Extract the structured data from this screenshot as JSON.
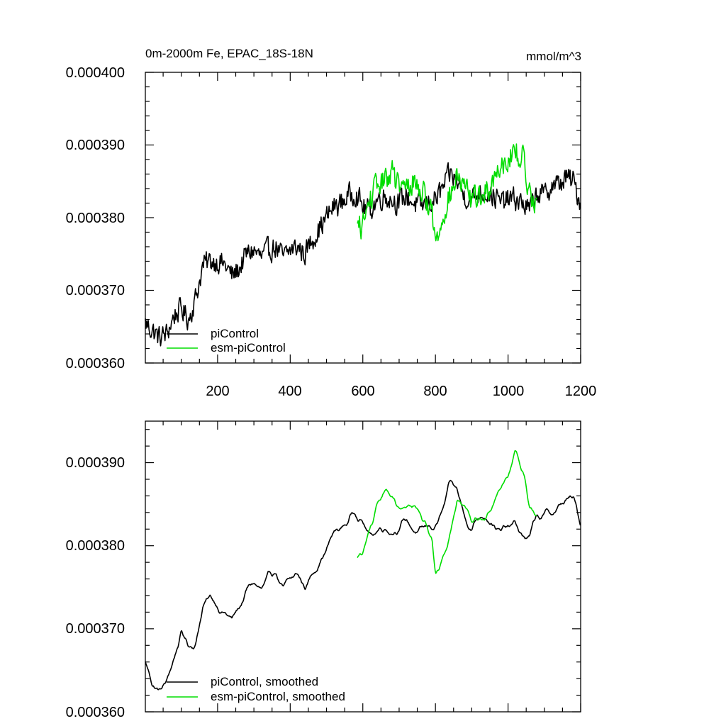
{
  "chart_data": [
    {
      "type": "line",
      "title": "0m-2000m Fe, EPAC_18S-18N",
      "units": "mmol/m^3",
      "xlabel": "",
      "ylabel": "",
      "xlim": [
        1,
        1200
      ],
      "ylim": [
        0.00036,
        0.0004
      ],
      "xticks": [
        200,
        400,
        600,
        800,
        1000,
        1200
      ],
      "xtick_labels": [
        "200",
        "400",
        "600",
        "800",
        "1000",
        "1200"
      ],
      "yticks": [
        0.00036,
        0.00037,
        0.00038,
        0.00039,
        0.0004
      ],
      "ytick_labels": [
        "0.000360",
        "0.000370",
        "0.000380",
        "0.000390",
        "0.000400"
      ],
      "legend_position": "bottom-left",
      "series": [
        {
          "name": "piControl",
          "color": "#000000",
          "x_range": [
            1,
            1200
          ],
          "x_anchor": [
            1,
            20,
            40,
            60,
            80,
            100,
            120,
            140,
            160,
            180,
            200,
            220,
            240,
            260,
            280,
            300,
            320,
            340,
            360,
            380,
            400,
            420,
            440,
            460,
            480,
            500,
            520,
            540,
            560,
            580,
            600,
            620,
            640,
            660,
            680,
            700,
            720,
            740,
            760,
            780,
            800,
            820,
            840,
            860,
            880,
            900,
            920,
            940,
            960,
            980,
            1000,
            1020,
            1040,
            1060,
            1080,
            1100,
            1120,
            1140,
            1160,
            1180,
            1200
          ],
          "trend": [
            0.0003655,
            0.0003645,
            0.0003635,
            0.000364,
            0.0003665,
            0.0003675,
            0.000366,
            0.000369,
            0.0003735,
            0.000374,
            0.000374,
            0.0003735,
            0.000372,
            0.000373,
            0.000375,
            0.0003755,
            0.0003745,
            0.0003755,
            0.000376,
            0.0003745,
            0.0003755,
            0.000376,
            0.000375,
            0.000377,
            0.0003785,
            0.00038,
            0.0003815,
            0.000382,
            0.000383,
            0.0003835,
            0.0003815,
            0.000381,
            0.0003825,
            0.000383,
            0.0003825,
            0.000382,
            0.000383,
            0.000382,
            0.0003815,
            0.000382,
            0.0003825,
            0.000384,
            0.000386,
            0.000385,
            0.000383,
            0.0003825,
            0.0003835,
            0.0003835,
            0.000383,
            0.000382,
            0.0003825,
            0.0003825,
            0.000382,
            0.000381,
            0.0003835,
            0.000383,
            0.0003845,
            0.0003845,
            0.0003855,
            0.000385,
            0.000382
          ],
          "noise_amplitude": 2.2e-06
        },
        {
          "name": "esm-piControl",
          "color": "#00dd00",
          "x_range": [
            585,
            1080
          ],
          "x_anchor": [
            585,
            600,
            620,
            640,
            660,
            680,
            700,
            720,
            740,
            760,
            780,
            790,
            800,
            810,
            820,
            840,
            860,
            880,
            900,
            920,
            940,
            960,
            980,
            1000,
            1020,
            1040,
            1060,
            1080
          ],
          "trend": [
            0.0003785,
            0.000379,
            0.0003825,
            0.0003845,
            0.000385,
            0.0003865,
            0.000384,
            0.000384,
            0.000385,
            0.000384,
            0.000382,
            0.000381,
            0.0003765,
            0.000378,
            0.0003805,
            0.000383,
            0.0003855,
            0.000384,
            0.0003825,
            0.000383,
            0.0003835,
            0.0003855,
            0.0003875,
            0.000388,
            0.000389,
            0.0003885,
            0.000383,
            0.0003825
          ],
          "noise_amplitude": 2.4e-06
        }
      ]
    },
    {
      "type": "line",
      "title": "",
      "xlabel": "",
      "ylabel": "",
      "xlim": [
        1,
        1200
      ],
      "ylim": [
        0.00036,
        0.000395
      ],
      "xticks": [
        200,
        400,
        600,
        800,
        1000,
        1200
      ],
      "yticks": [
        0.00036,
        0.00037,
        0.00038,
        0.00039
      ],
      "ytick_labels": [
        "0.000360",
        "0.000370",
        "0.000380",
        "0.000390"
      ],
      "legend_position": "bottom-left",
      "series": [
        {
          "name": "piControl, smoothed",
          "color": "#000000",
          "x_range": [
            1,
            1200
          ],
          "x_anchor": [
            1,
            20,
            40,
            60,
            80,
            100,
            120,
            140,
            160,
            180,
            200,
            220,
            240,
            260,
            280,
            300,
            320,
            340,
            360,
            380,
            400,
            420,
            440,
            460,
            480,
            500,
            520,
            540,
            560,
            580,
            600,
            620,
            640,
            660,
            680,
            700,
            720,
            740,
            760,
            780,
            800,
            820,
            840,
            860,
            880,
            900,
            920,
            940,
            960,
            980,
            1000,
            1020,
            1040,
            1060,
            1080,
            1100,
            1120,
            1140,
            1160,
            1180,
            1200
          ],
          "trend": [
            0.000366,
            0.0003635,
            0.0003625,
            0.0003635,
            0.0003665,
            0.0003695,
            0.000368,
            0.0003685,
            0.000373,
            0.0003735,
            0.000373,
            0.000372,
            0.000371,
            0.0003725,
            0.0003745,
            0.0003755,
            0.0003745,
            0.0003755,
            0.000377,
            0.0003745,
            0.0003755,
            0.0003765,
            0.000375,
            0.0003765,
            0.0003785,
            0.0003795,
            0.0003815,
            0.000382,
            0.000383,
            0.0003845,
            0.000383,
            0.000381,
            0.000382,
            0.0003825,
            0.000382,
            0.0003825,
            0.000383,
            0.000382,
            0.0003815,
            0.000382,
            0.0003825,
            0.000384,
            0.000387,
            0.0003865,
            0.0003835,
            0.0003825,
            0.0003835,
            0.000384,
            0.000383,
            0.0003815,
            0.000382,
            0.0003825,
            0.000381,
            0.000381,
            0.0003835,
            0.0003835,
            0.000384,
            0.0003845,
            0.0003855,
            0.0003855,
            0.0003825
          ],
          "noise_amplitude": 9e-07
        },
        {
          "name": "esm-piControl, smoothed",
          "color": "#00dd00",
          "x_range": [
            585,
            1080
          ],
          "x_anchor": [
            585,
            600,
            620,
            640,
            660,
            680,
            700,
            720,
            740,
            760,
            780,
            790,
            800,
            810,
            820,
            840,
            860,
            880,
            900,
            920,
            940,
            960,
            980,
            1000,
            1020,
            1040,
            1060,
            1080
          ],
          "trend": [
            0.0003785,
            0.000379,
            0.000382,
            0.0003845,
            0.0003865,
            0.000386,
            0.000384,
            0.000384,
            0.000385,
            0.000384,
            0.000382,
            0.000381,
            0.0003765,
            0.000377,
            0.000379,
            0.000382,
            0.0003855,
            0.0003845,
            0.0003825,
            0.000383,
            0.0003835,
            0.0003855,
            0.0003875,
            0.000389,
            0.0003915,
            0.0003895,
            0.0003845,
            0.000384
          ],
          "noise_amplitude": 8e-07
        }
      ]
    }
  ]
}
